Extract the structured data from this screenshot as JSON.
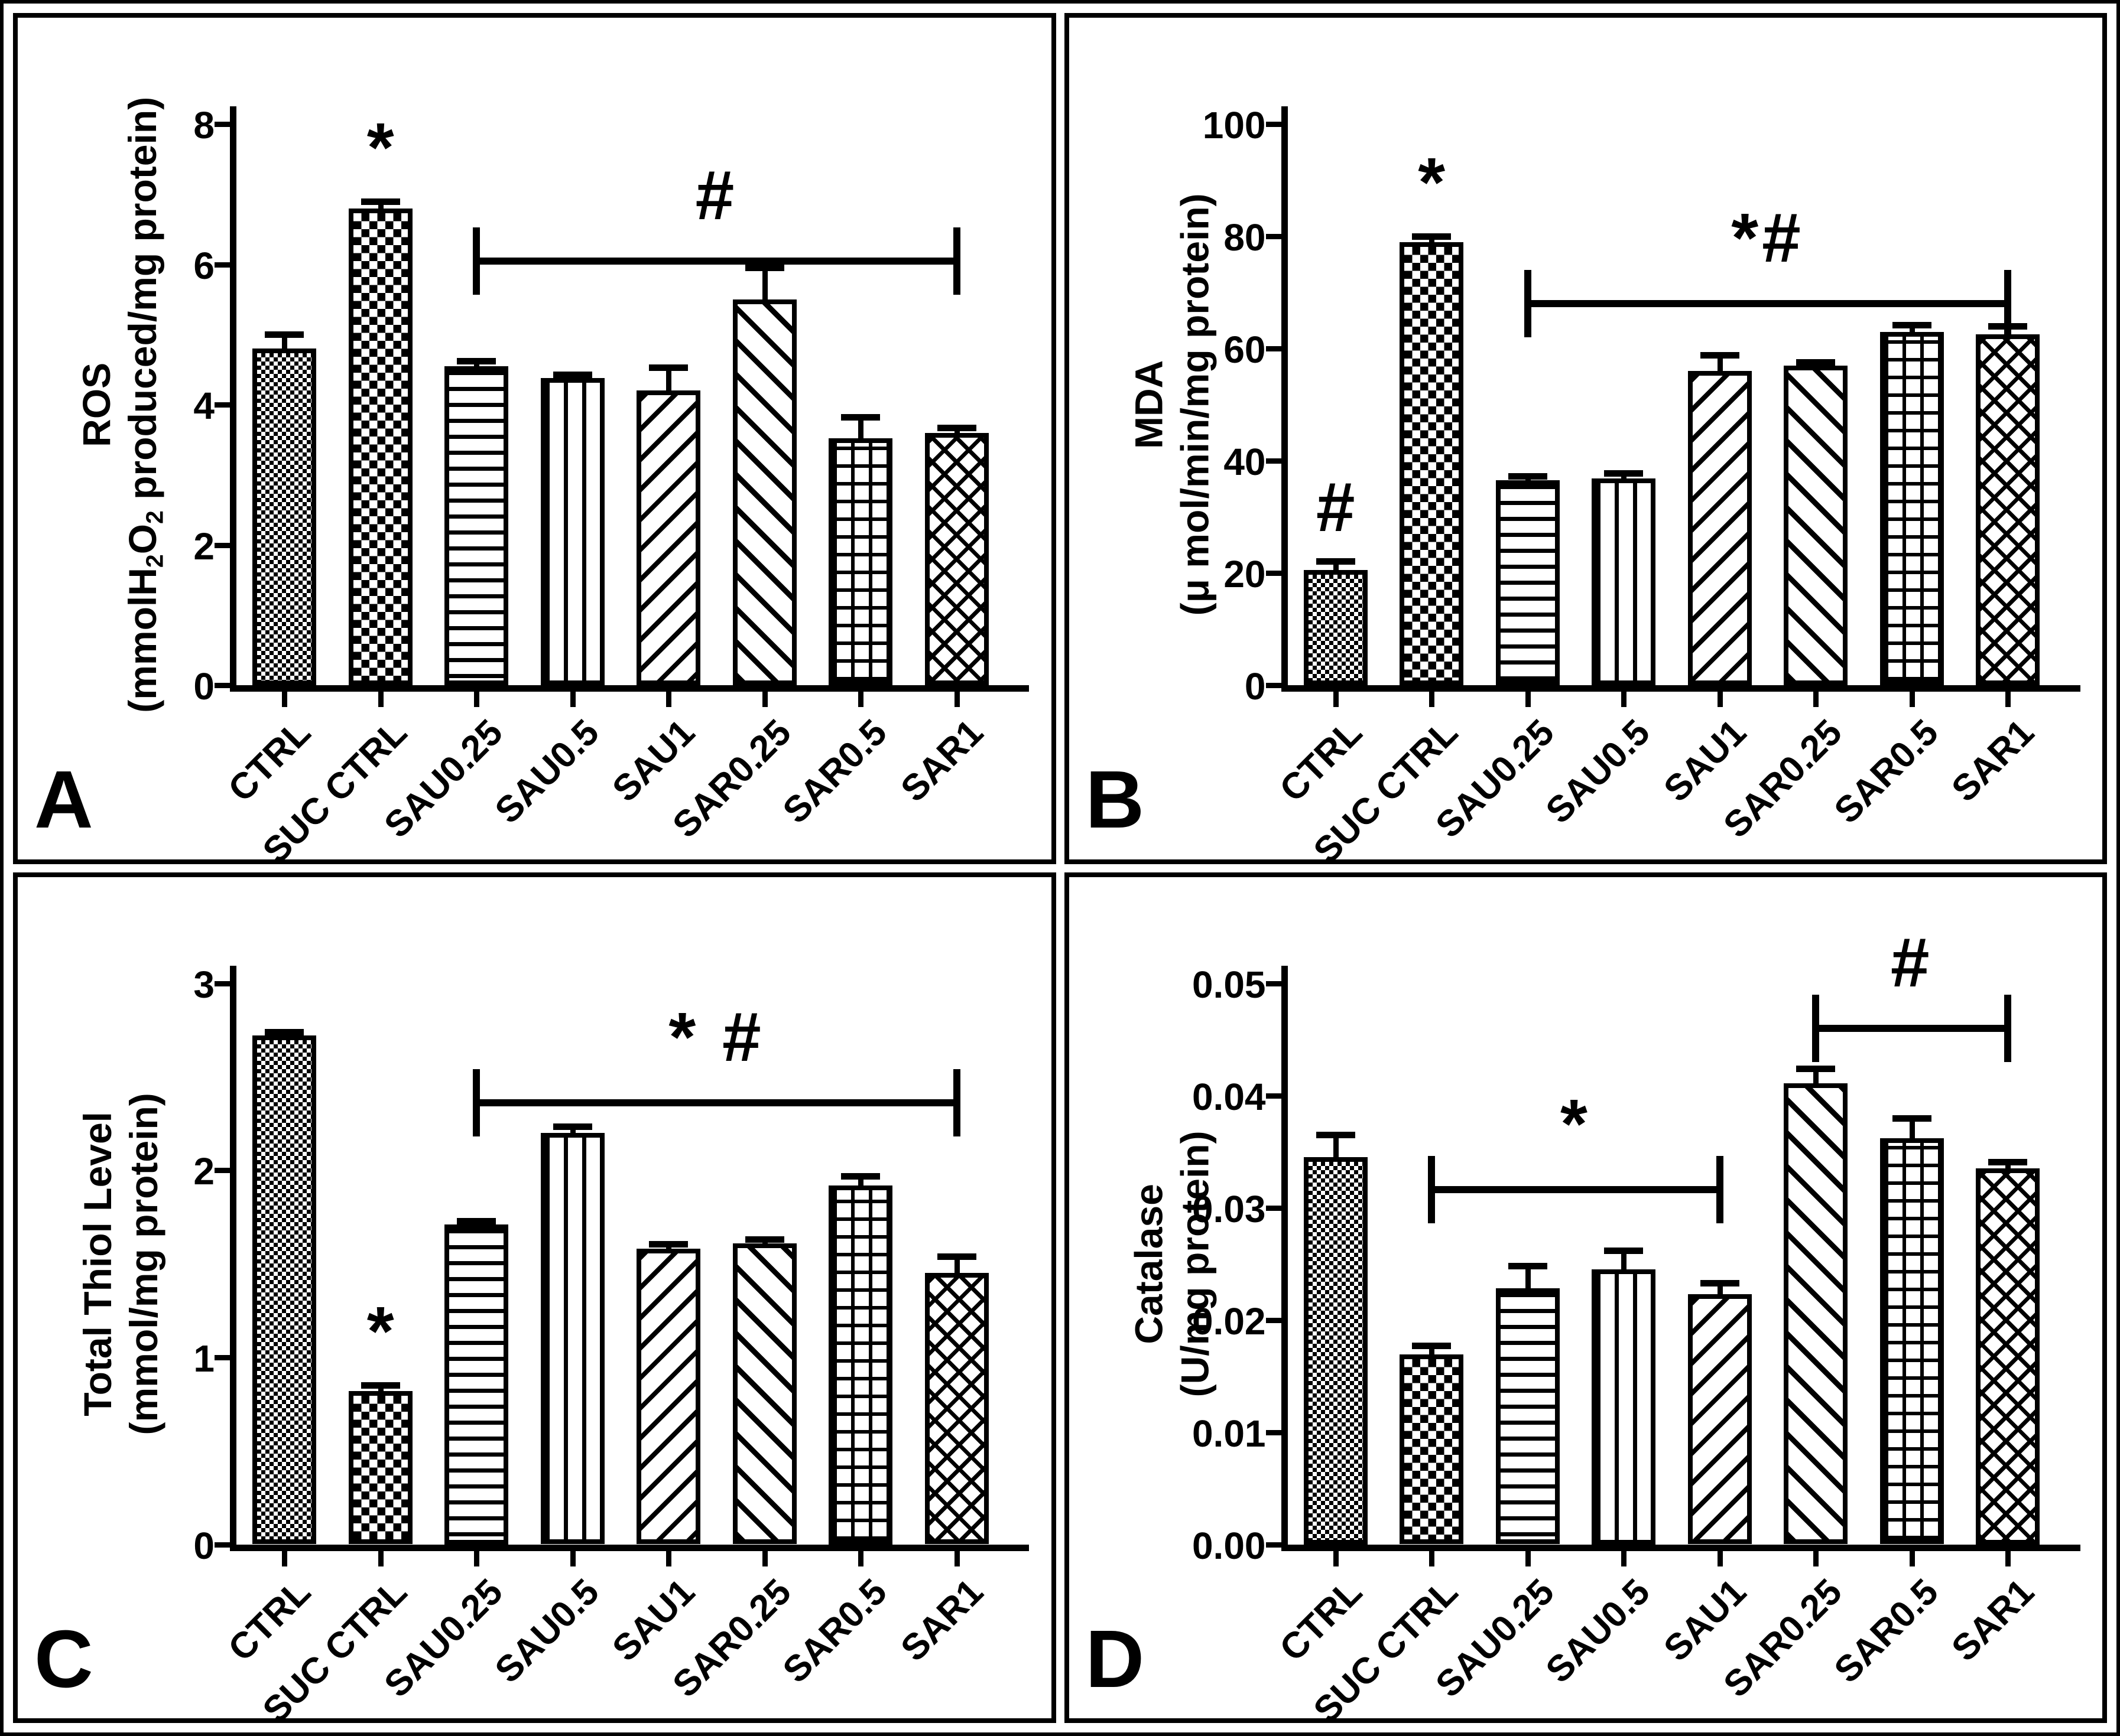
{
  "figure": {
    "description_visible_text_only": true,
    "panel_letters": [
      "A",
      "B",
      "C",
      "D"
    ]
  },
  "chart_data": [
    {
      "type": "bar",
      "panel_letter": "A",
      "ylabel_title": "ROS",
      "ylabel_unit_parts": [
        {
          "t": "(mmolH"
        },
        {
          "sub": "2"
        },
        {
          "t": "O"
        },
        {
          "sub": "2"
        },
        {
          "t": " produced/mg protein)"
        }
      ],
      "categories": [
        "CTRL",
        "SUC CTRL",
        "SAU0.25",
        "SAU0.5",
        "SAU1",
        "SAR0.25",
        "SAR0.5",
        "SAR1"
      ],
      "values": [
        4.8,
        6.8,
        4.55,
        4.38,
        4.2,
        5.5,
        3.52,
        3.6
      ],
      "errors": [
        0.2,
        0.1,
        0.07,
        0.05,
        0.33,
        0.45,
        0.3,
        0.07
      ],
      "ylim": [
        0,
        8
      ],
      "yticks": [
        "0",
        "2",
        "4",
        "6",
        "8"
      ],
      "grid": false,
      "legend": "none",
      "bar_patterns": [
        "checker-fine",
        "checker-coarse",
        "h-lines",
        "v-lines",
        "diag-up",
        "diag-down",
        "grid",
        "diag-cross"
      ],
      "marks": [
        {
          "bar_index": 1,
          "text": "*"
        }
      ],
      "brackets": [
        {
          "from_index": 2,
          "to_index": 7,
          "y": 6.05,
          "label": "#"
        }
      ]
    },
    {
      "type": "bar",
      "panel_letter": "B",
      "ylabel_title": "MDA",
      "ylabel_unit_parts": [
        {
          "t": "(μ mol/min/mg protein)"
        }
      ],
      "categories": [
        "CTRL",
        "SUC CTRL",
        "SAU0.25",
        "SAU0.5",
        "SAU1",
        "SAR0.25",
        "SAR0.5",
        "SAR1"
      ],
      "values": [
        20.5,
        79,
        36.5,
        36.8,
        56,
        57,
        63,
        62.5
      ],
      "errors": [
        1.6,
        1,
        0.8,
        1,
        2.8,
        0.6,
        1.2,
        1.5
      ],
      "ylim": [
        0,
        100
      ],
      "yticks": [
        "0",
        "20",
        "40",
        "60",
        "80",
        "100"
      ],
      "grid": false,
      "legend": "none",
      "bar_patterns": [
        "checker-fine",
        "checker-coarse",
        "h-lines",
        "v-lines",
        "diag-up",
        "diag-down",
        "grid",
        "diag-cross"
      ],
      "marks": [
        {
          "bar_index": 0,
          "text": "#"
        },
        {
          "bar_index": 1,
          "text": "*"
        }
      ],
      "brackets": [
        {
          "from_index": 2,
          "to_index": 7,
          "y": 68,
          "label": "*#"
        }
      ]
    },
    {
      "type": "bar",
      "panel_letter": "C",
      "ylabel_title": "Total Thiol Level",
      "ylabel_unit_parts": [
        {
          "t": "(mmol/mg protein)"
        }
      ],
      "categories": [
        "CTRL",
        "SUC CTRL",
        "SAU0.25",
        "SAU0.5",
        "SAU1",
        "SAR0.25",
        "SAR0.5",
        "SAR1"
      ],
      "values": [
        2.72,
        0.82,
        1.71,
        2.2,
        1.58,
        1.61,
        1.92,
        1.45
      ],
      "errors": [
        0.02,
        0.03,
        0.02,
        0.035,
        0.025,
        0.02,
        0.05,
        0.09
      ],
      "ylim": [
        0,
        3
      ],
      "yticks": [
        "0",
        "1",
        "2",
        "3"
      ],
      "grid": false,
      "legend": "none",
      "bar_patterns": [
        "checker-fine",
        "checker-coarse",
        "h-lines",
        "v-lines",
        "diag-up",
        "diag-down",
        "grid",
        "diag-cross"
      ],
      "marks": [
        {
          "bar_index": 1,
          "text": "*"
        }
      ],
      "brackets": [
        {
          "from_index": 2,
          "to_index": 7,
          "y": 2.36,
          "label": "*  #"
        }
      ]
    },
    {
      "type": "bar",
      "panel_letter": "D",
      "ylabel_title": "Catalase",
      "ylabel_unit_parts": [
        {
          "t": "(U/mg protein)"
        }
      ],
      "categories": [
        "CTRL",
        "SUC CTRL",
        "SAU0.25",
        "SAU0.5",
        "SAU1",
        "SAR0.25",
        "SAR0.5",
        "SAR1"
      ],
      "values": [
        0.0345,
        0.0169,
        0.0228,
        0.0245,
        0.0223,
        0.0411,
        0.0362,
        0.0335
      ],
      "errors": [
        0.002,
        0.0008,
        0.002,
        0.0017,
        0.001,
        0.0013,
        0.0018,
        0.0006
      ],
      "ylim": [
        0,
        0.05
      ],
      "yticks": [
        "0.00",
        "0.01",
        "0.02",
        "0.03",
        "0.04",
        "0.05"
      ],
      "grid": false,
      "legend": "none",
      "bar_patterns": [
        "checker-fine",
        "checker-coarse",
        "h-lines",
        "v-lines",
        "diag-up",
        "diag-down",
        "grid",
        "diag-cross"
      ],
      "marks": [],
      "brackets": [
        {
          "from_index": 1,
          "to_index": 4,
          "y": 0.0316,
          "label": "*"
        },
        {
          "from_index": 5,
          "to_index": 7,
          "y": 0.046,
          "label": "#"
        }
      ]
    }
  ]
}
